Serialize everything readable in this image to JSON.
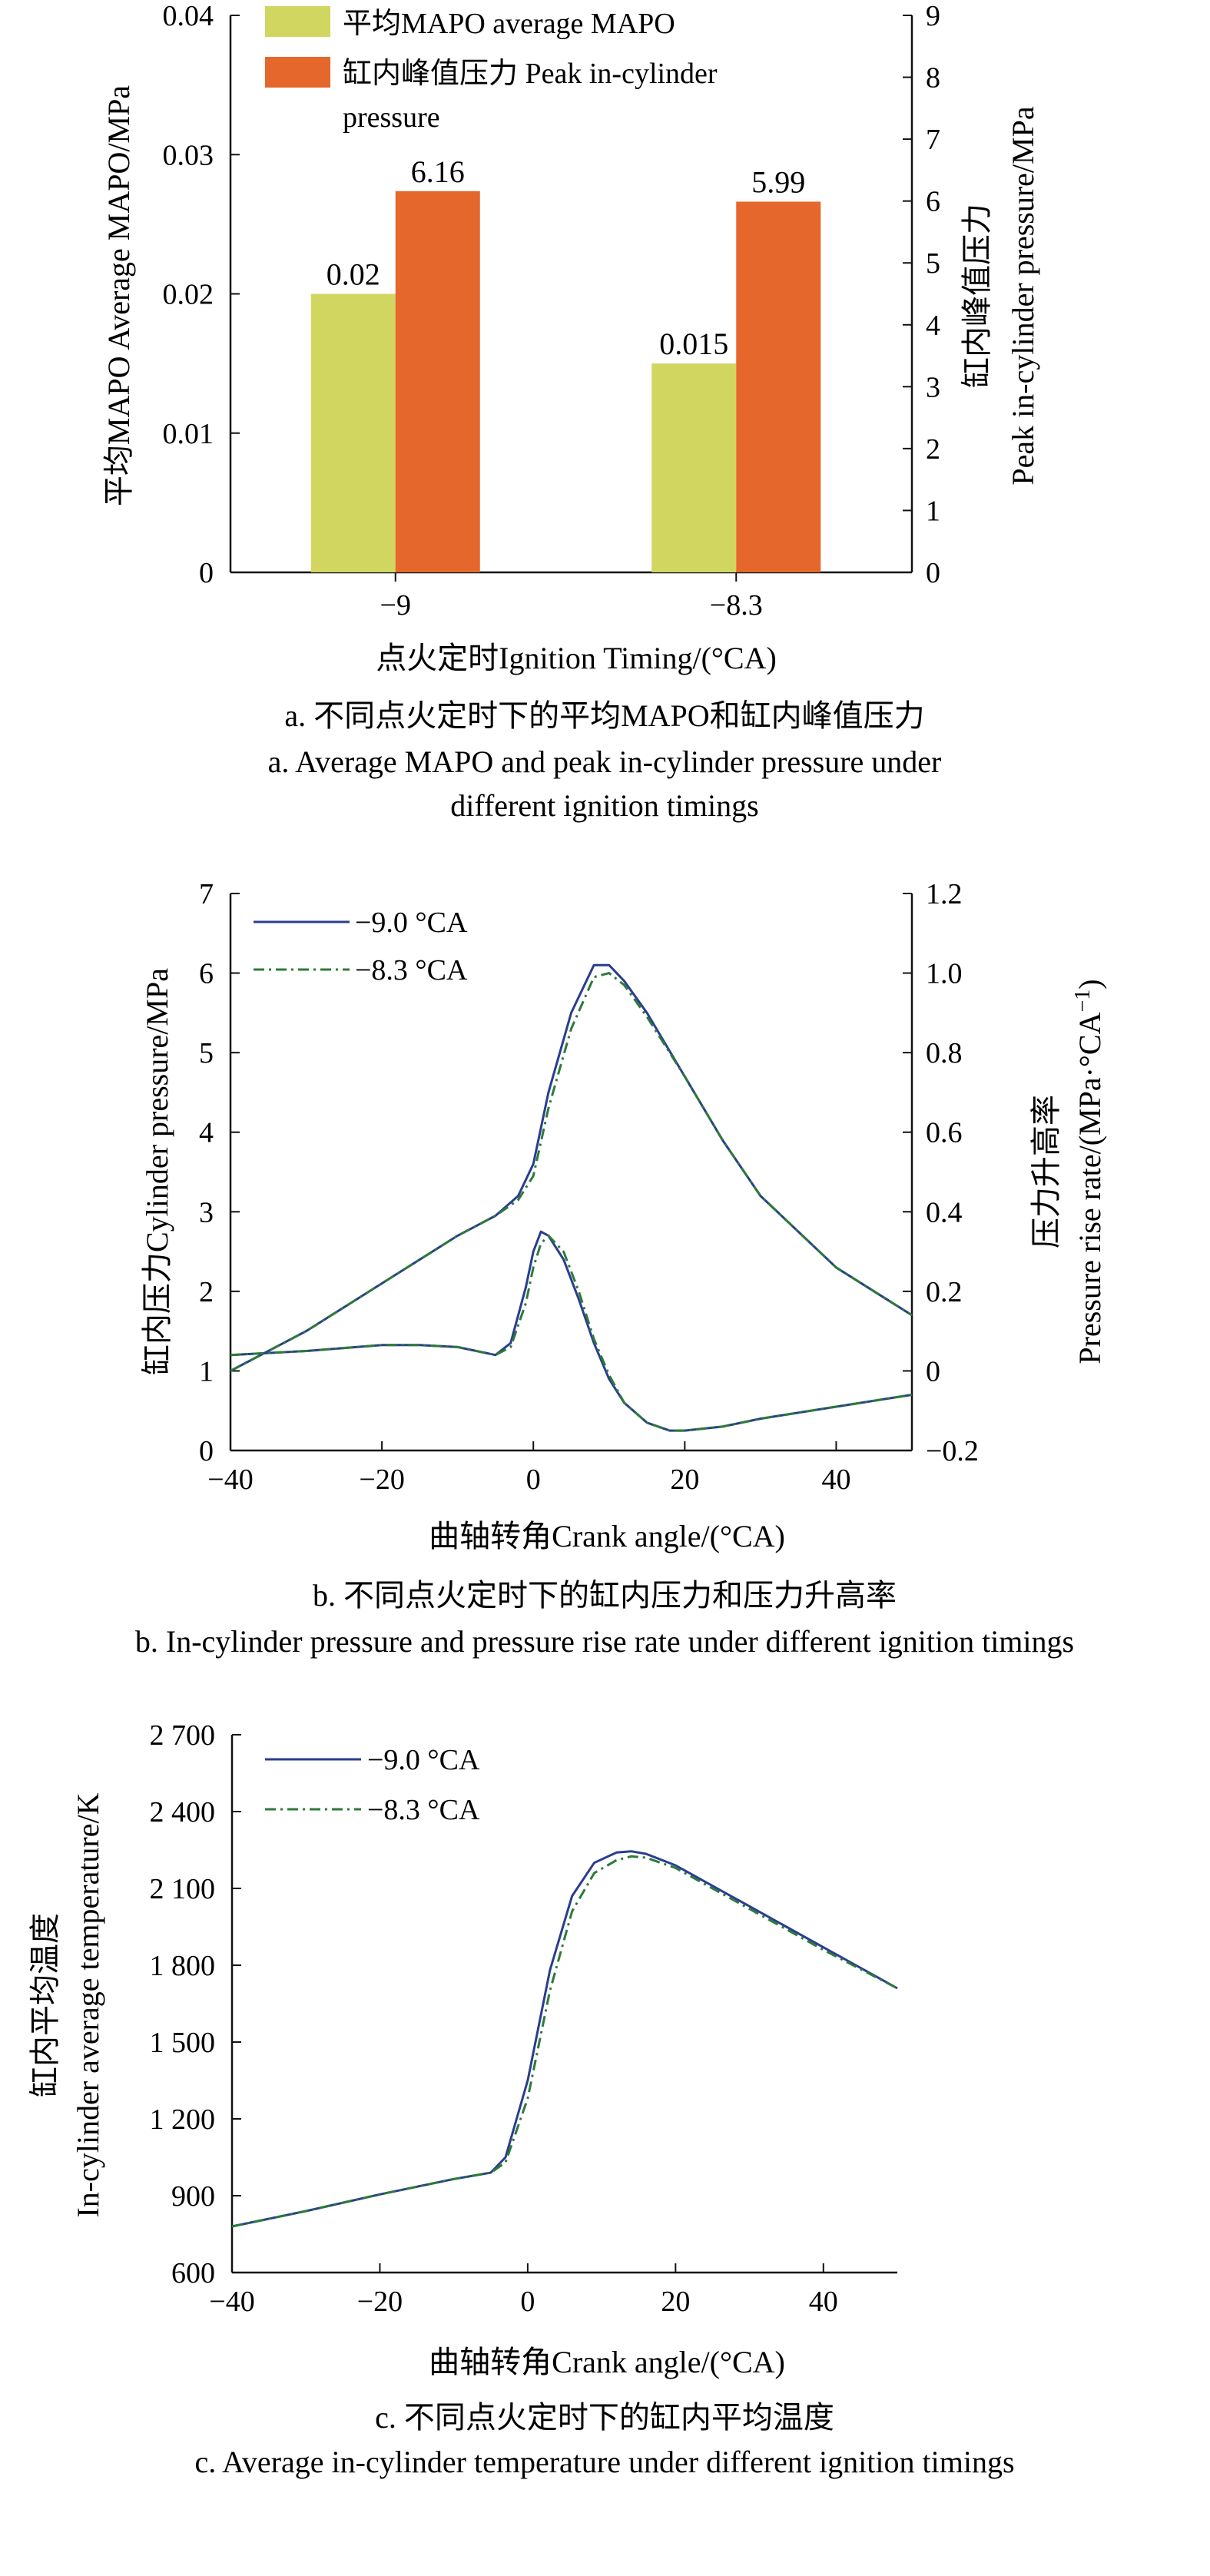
{
  "chart_data": [
    {
      "type": "bar",
      "categories": [
        "−9",
        "−8.3"
      ],
      "series": [
        {
          "name": "平均MAPO average MAPO",
          "values": [
            0.02,
            0.015
          ],
          "axis": "left",
          "color": "#d1d660",
          "labels": [
            "0.02",
            "0.015"
          ]
        },
        {
          "name": "缸内峰值压力 Peak in-cylinder pressure",
          "values": [
            6.16,
            5.99
          ],
          "axis": "right",
          "color": "#e5672c",
          "labels": [
            "6.16",
            "5.99"
          ]
        }
      ],
      "ylim_left": [
        0,
        0.04
      ],
      "yticks_left": [
        "0",
        "0.01",
        "0.02",
        "0.03",
        "0.04"
      ],
      "ylim_right": [
        0,
        9
      ],
      "yticks_right": [
        "0",
        "1",
        "2",
        "3",
        "4",
        "5",
        "6",
        "7",
        "8",
        "9"
      ],
      "xlabel": "点火定时Ignition Timing/(°CA)",
      "ylabel_left": "平均MAPO Average MAPO/MPa",
      "ylabel_right_cn": "缸内峰值压力",
      "ylabel_right_en": "Peak in-cylinder pressure/MPa",
      "legend_placement": "top-left",
      "caption_cn": "a. 不同点火定时下的平均MAPO和缸内峰值压力",
      "caption_en_1": "a. Average MAPO and peak in-cylinder pressure under",
      "caption_en_2": "different ignition timings"
    },
    {
      "type": "line",
      "xlim": [
        -40,
        50
      ],
      "xticks": [
        "−40",
        "−20",
        "0",
        "20",
        "40"
      ],
      "ylim_left": [
        0,
        7
      ],
      "yticks_left": [
        "0",
        "1",
        "2",
        "3",
        "4",
        "5",
        "6",
        "7"
      ],
      "ylim_right": [
        -0.2,
        1.2
      ],
      "yticks_right": [
        "−0.2",
        "0",
        "0.2",
        "0.4",
        "0.6",
        "0.8",
        "1.0",
        "1.2"
      ],
      "xlabel": "曲轴转角Crank angle/(°CA)",
      "ylabel_left": "缸内压力Cylinder pressure/MPa",
      "ylabel_right_cn": "压力升高率",
      "ylabel_right_en": "Pressure rise rate/(MPa·°CA",
      "ylabel_right_sup": "−1",
      "ylabel_right_close": ")",
      "legend_placement": "top-left",
      "series": [
        {
          "name": "−9.0 °CA",
          "axis": "left",
          "color": "#2a3d8f",
          "dash": "solid",
          "x": [
            -40,
            -30,
            -20,
            -10,
            -5,
            -2,
            0,
            2,
            5,
            8,
            10,
            12,
            15,
            20,
            25,
            30,
            40,
            50
          ],
          "y": [
            1.0,
            1.5,
            2.1,
            2.7,
            2.95,
            3.2,
            3.6,
            4.5,
            5.5,
            6.1,
            6.1,
            5.9,
            5.5,
            4.7,
            3.9,
            3.2,
            2.3,
            1.7
          ]
        },
        {
          "name": "−8.3 °CA",
          "axis": "left",
          "color": "#2d7a3a",
          "dash": "dashdot",
          "x": [
            -40,
            -30,
            -20,
            -10,
            -5,
            -2,
            0,
            2,
            5,
            8,
            10,
            12,
            15,
            20,
            25,
            30,
            40,
            50
          ],
          "y": [
            1.0,
            1.5,
            2.1,
            2.7,
            2.95,
            3.15,
            3.45,
            4.3,
            5.3,
            5.95,
            6.0,
            5.85,
            5.45,
            4.7,
            3.9,
            3.2,
            2.3,
            1.7
          ]
        },
        {
          "name": "",
          "axis": "right",
          "color": "#2a3d8f",
          "dash": "solid",
          "x": [
            -40,
            -30,
            -20,
            -15,
            -10,
            -5,
            -3,
            -1,
            0,
            1,
            2,
            4,
            6,
            8,
            10,
            12,
            15,
            18,
            20,
            25,
            30,
            40,
            50
          ],
          "y": [
            0.04,
            0.05,
            0.065,
            0.065,
            0.06,
            0.04,
            0.07,
            0.21,
            0.3,
            0.35,
            0.34,
            0.28,
            0.18,
            0.07,
            -0.02,
            -0.08,
            -0.13,
            -0.15,
            -0.15,
            -0.14,
            -0.12,
            -0.09,
            -0.06
          ]
        },
        {
          "name": "",
          "axis": "right",
          "color": "#2d7a3a",
          "dash": "dashdot",
          "x": [
            -40,
            -30,
            -20,
            -15,
            -10,
            -5,
            -3,
            -1,
            0,
            1,
            2,
            4,
            6,
            8,
            10,
            12,
            15,
            18,
            20,
            25,
            30,
            40,
            50
          ],
          "y": [
            0.04,
            0.05,
            0.065,
            0.065,
            0.06,
            0.04,
            0.06,
            0.17,
            0.26,
            0.32,
            0.34,
            0.3,
            0.2,
            0.08,
            -0.01,
            -0.08,
            -0.13,
            -0.15,
            -0.15,
            -0.14,
            -0.12,
            -0.09,
            -0.06
          ]
        }
      ],
      "caption_cn": "b. 不同点火定时下的缸内压力和压力升高率",
      "caption_en": "b. In-cylinder pressure and pressure rise rate under different ignition timings"
    },
    {
      "type": "line",
      "xlim": [
        -40,
        50
      ],
      "xticks": [
        "−40",
        "−20",
        "0",
        "20",
        "40"
      ],
      "ylim": [
        600,
        2700
      ],
      "yticks": [
        "600",
        "900",
        "1 200",
        "1 500",
        "1 800",
        "2 100",
        "2 400",
        "2 700"
      ],
      "xlabel": "曲轴转角Crank angle/(°CA)",
      "ylabel_cn": "缸内平均温度",
      "ylabel_en": "In-cylinder average temperature/K",
      "legend_placement": "top-left",
      "series": [
        {
          "name": "−9.0 °CA",
          "color": "#2a3d8f",
          "dash": "solid",
          "x": [
            -40,
            -30,
            -20,
            -10,
            -5,
            -3,
            0,
            3,
            6,
            9,
            12,
            14,
            16,
            20,
            25,
            30,
            40,
            50
          ],
          "y": [
            780,
            840,
            905,
            965,
            990,
            1050,
            1350,
            1780,
            2070,
            2200,
            2240,
            2245,
            2235,
            2190,
            2110,
            2030,
            1870,
            1710
          ]
        },
        {
          "name": "−8.3 °CA",
          "color": "#2d7a3a",
          "dash": "dashdot",
          "x": [
            -40,
            -30,
            -20,
            -10,
            -5,
            -3,
            0,
            3,
            6,
            9,
            12,
            14,
            16,
            20,
            25,
            30,
            40,
            50
          ],
          "y": [
            780,
            840,
            905,
            965,
            990,
            1030,
            1280,
            1700,
            2010,
            2160,
            2210,
            2225,
            2220,
            2180,
            2100,
            2020,
            1860,
            1710
          ]
        }
      ],
      "caption_cn": "c. 不同点火定时下的缸内平均温度",
      "caption_en": "c. Average in-cylinder temperature under different ignition timings"
    }
  ]
}
